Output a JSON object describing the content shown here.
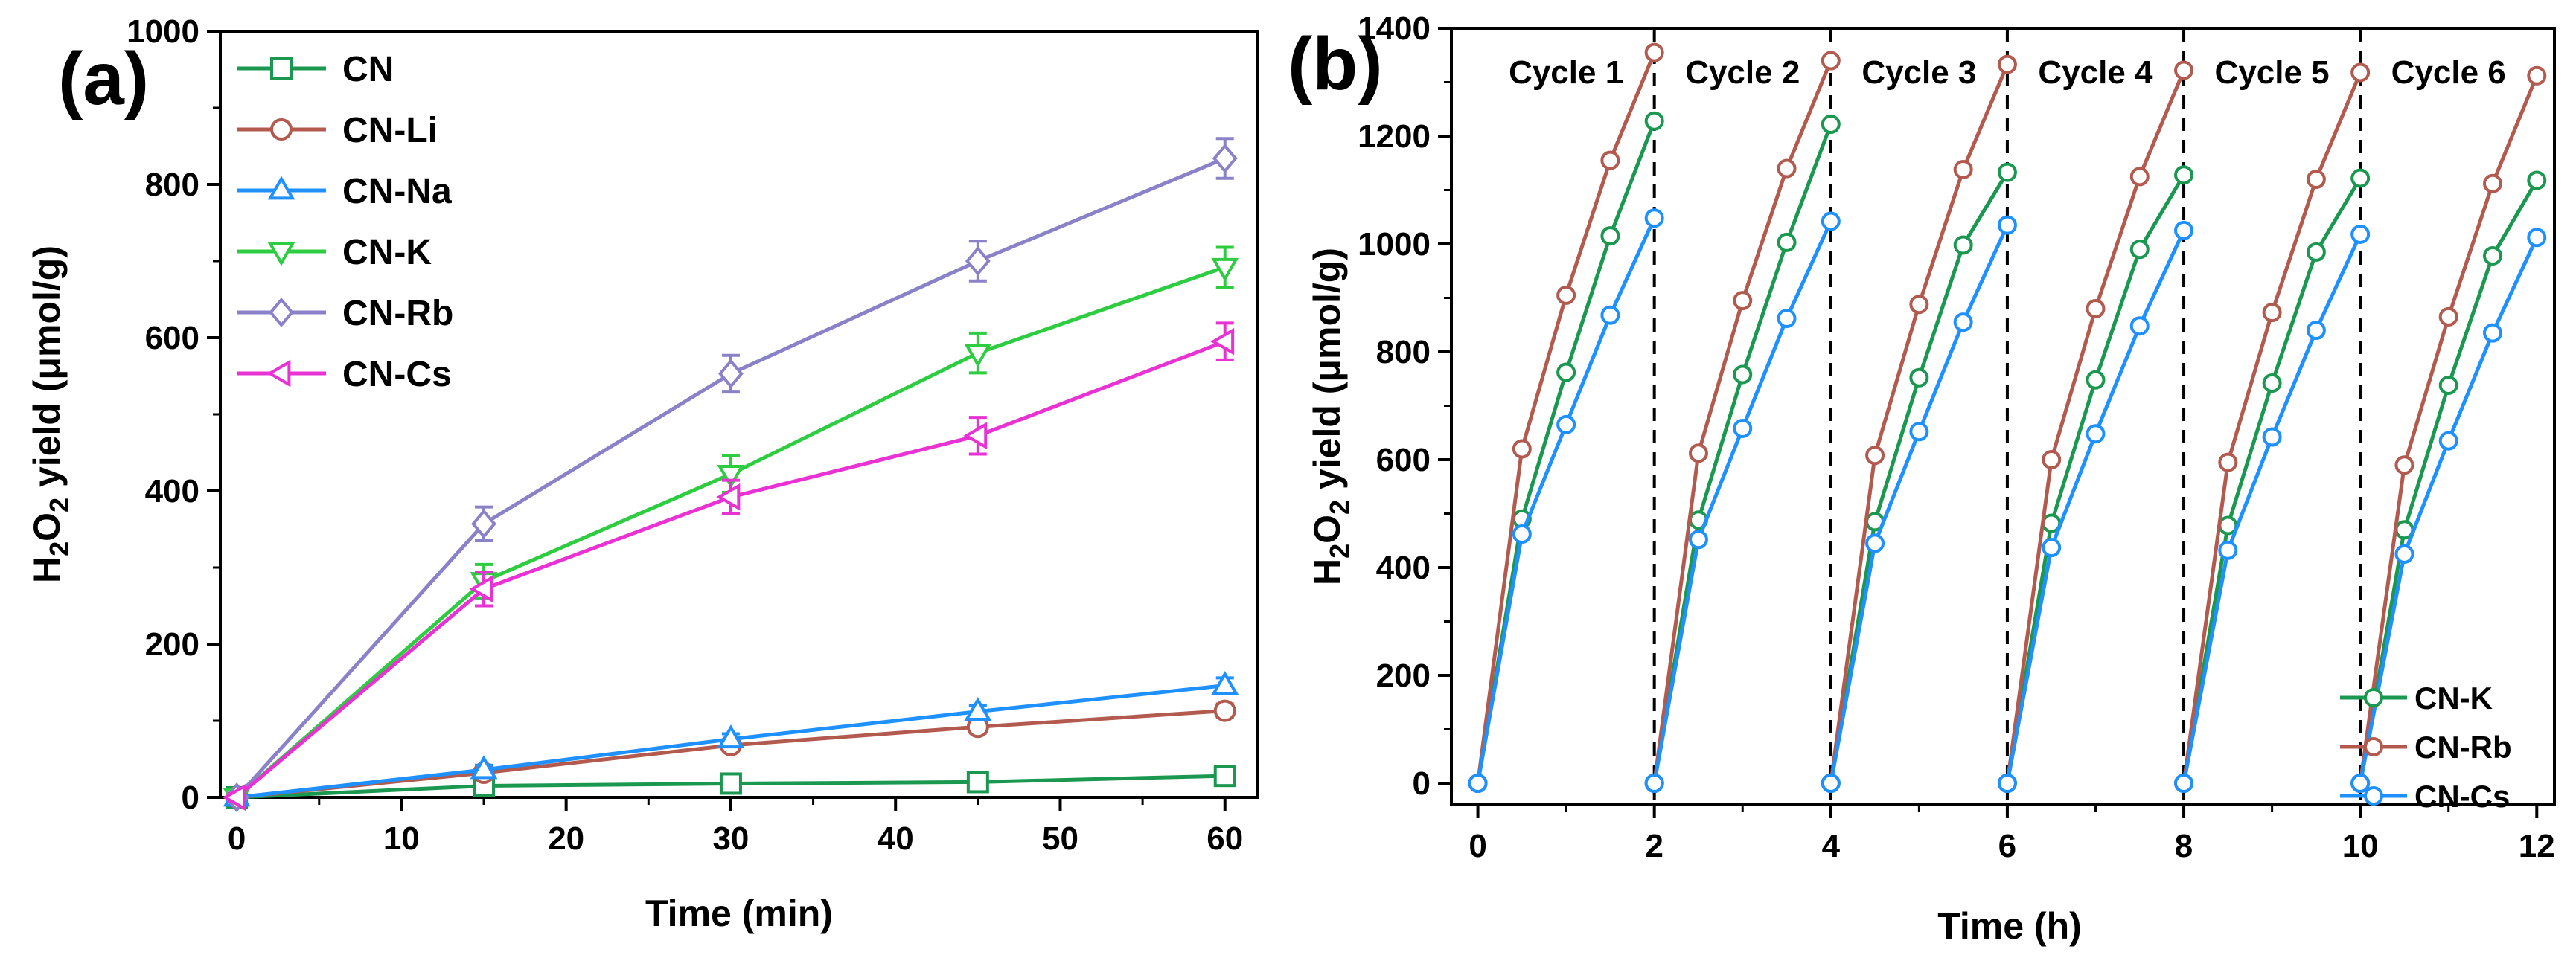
{
  "chart_data": [
    {
      "type": "line",
      "panel_label": "(a)",
      "xlabel": "Time (min)",
      "ylabel": {
        "pre": "H",
        "sub1": "2",
        "mid": "O",
        "sub2": "2",
        "post": " yield (μmol/g)"
      },
      "xlim": [
        -1,
        62
      ],
      "ylim": [
        0,
        1000
      ],
      "xticks": [
        0,
        10,
        20,
        30,
        40,
        50,
        60
      ],
      "yticks": [
        0,
        200,
        400,
        600,
        800,
        1000
      ],
      "x": [
        0,
        15,
        30,
        45,
        60
      ],
      "legend_position": "top-left",
      "series": [
        {
          "name": "CN",
          "color": "#1a9850",
          "marker": "square",
          "values": [
            0,
            15,
            18,
            20,
            28
          ],
          "errors": [
            5,
            6,
            6,
            6,
            7
          ]
        },
        {
          "name": "CN-Li",
          "color": "#b35a4f",
          "marker": "circle",
          "values": [
            0,
            32,
            68,
            92,
            113
          ],
          "errors": [
            5,
            6,
            7,
            8,
            9
          ]
        },
        {
          "name": "CN-Na",
          "color": "#1e90ff",
          "marker": "triangle-up",
          "values": [
            0,
            36,
            76,
            112,
            146
          ],
          "errors": [
            5,
            6,
            7,
            8,
            10
          ]
        },
        {
          "name": "CN-K",
          "color": "#2ecc40",
          "marker": "triangle-down",
          "values": [
            0,
            282,
            422,
            580,
            692
          ],
          "errors": [
            5,
            22,
            24,
            26,
            26
          ]
        },
        {
          "name": "CN-Rb",
          "color": "#8a82c8",
          "marker": "diamond",
          "values": [
            0,
            357,
            553,
            700,
            834
          ],
          "errors": [
            5,
            22,
            24,
            26,
            26
          ]
        },
        {
          "name": "CN-Cs",
          "color": "#e832d4",
          "marker": "triangle-left",
          "values": [
            0,
            272,
            392,
            472,
            595
          ],
          "errors": [
            5,
            22,
            22,
            24,
            24
          ]
        }
      ]
    },
    {
      "type": "line",
      "panel_label": "(b)",
      "xlabel": "Time (h)",
      "ylabel": {
        "pre": "H",
        "sub1": "2",
        "mid": "O",
        "sub2": "2",
        "post": " yield (μmol/g)"
      },
      "xlim": [
        -0.3,
        12.2
      ],
      "ylim": [
        -40,
        1400
      ],
      "xticks": [
        0,
        2,
        4,
        6,
        8,
        10,
        12
      ],
      "yticks": [
        0,
        200,
        400,
        600,
        800,
        1000,
        1200,
        1400
      ],
      "cycle_boundaries": [
        2,
        4,
        6,
        8,
        10
      ],
      "cycle_labels": [
        "Cycle 1",
        "Cycle 2",
        "Cycle 3",
        "Cycle 4",
        "Cycle 5",
        "Cycle 6"
      ],
      "cycle_starts": [
        0,
        2,
        4,
        6,
        8,
        10
      ],
      "cycle_offsets": [
        0,
        0.5,
        1,
        1.5,
        2
      ],
      "legend_position": "bottom-right",
      "series": [
        {
          "name": "CN-K",
          "color": "#1a9850",
          "cycles": [
            [
              0,
              490,
              762,
              1015,
              1228
            ],
            [
              0,
              488,
              758,
              1003,
              1222
            ],
            [
              0,
              485,
              752,
              998,
              1133
            ],
            [
              0,
              482,
              748,
              990,
              1128
            ],
            [
              0,
              478,
              742,
              985,
              1122
            ],
            [
              0,
              470,
              738,
              978,
              1118
            ]
          ]
        },
        {
          "name": "CN-Rb",
          "color": "#b35a4f",
          "cycles": [
            [
              0,
              620,
              905,
              1155,
              1355
            ],
            [
              0,
              612,
              895,
              1140,
              1340
            ],
            [
              0,
              608,
              888,
              1138,
              1333
            ],
            [
              0,
              600,
              880,
              1125,
              1322
            ],
            [
              0,
              595,
              873,
              1120,
              1318
            ],
            [
              0,
              590,
              865,
              1112,
              1312
            ]
          ]
        },
        {
          "name": "CN-Cs",
          "color": "#1e90ff",
          "cycles": [
            [
              0,
              462,
              665,
              868,
              1048
            ],
            [
              0,
              452,
              658,
              862,
              1042
            ],
            [
              0,
              445,
              652,
              855,
              1035
            ],
            [
              0,
              437,
              648,
              848,
              1025
            ],
            [
              0,
              432,
              642,
              840,
              1018
            ],
            [
              0,
              425,
              635,
              835,
              1012
            ]
          ]
        }
      ]
    }
  ]
}
